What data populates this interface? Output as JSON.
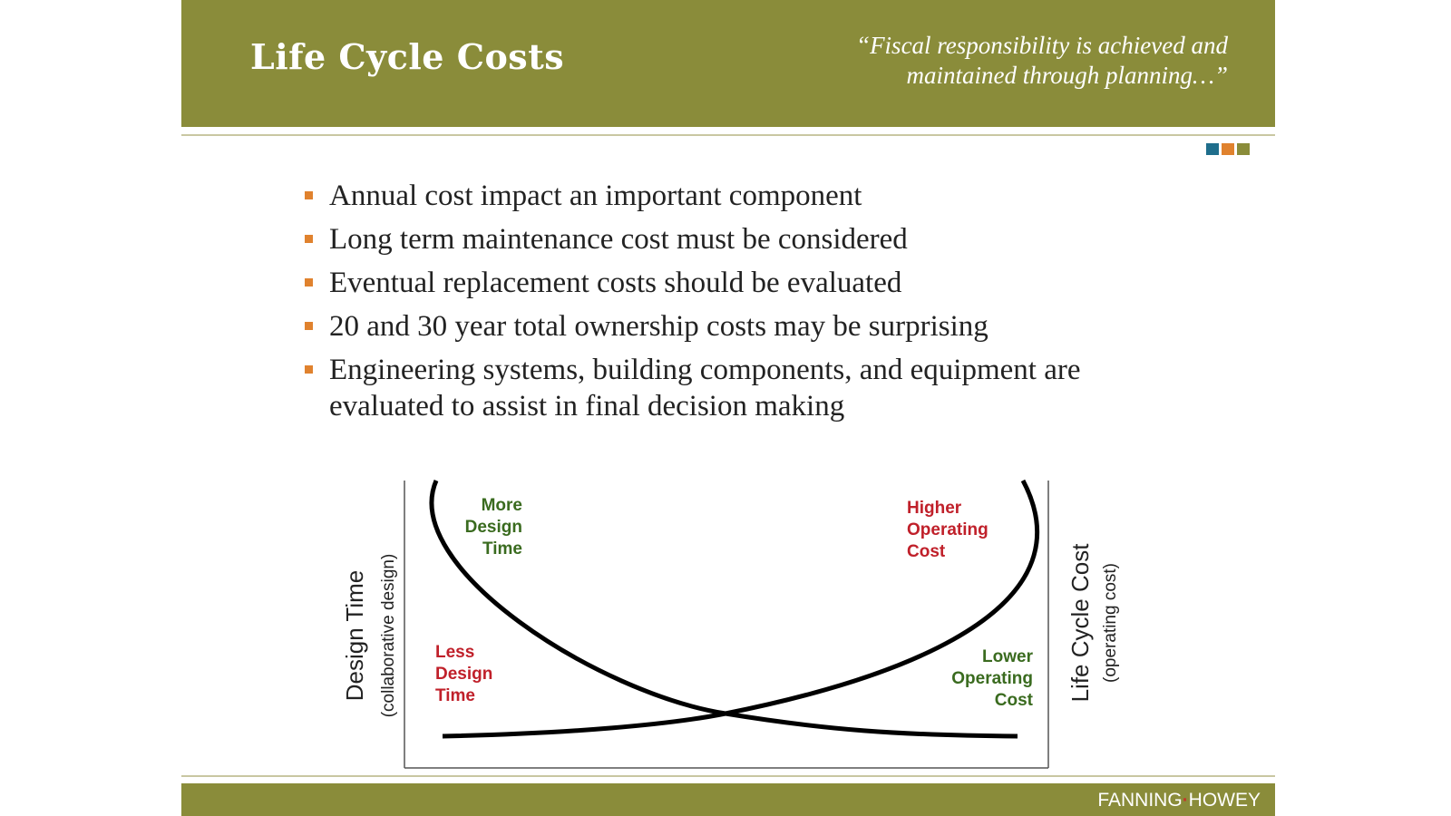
{
  "header": {
    "title": "Life Cycle Costs",
    "quote_line1": "“Fiscal responsibility is achieved and",
    "quote_line2": "maintained through planning…”"
  },
  "colors": {
    "header_bg": "#8a8c3a",
    "bullet_marker": "#e0822e",
    "square_blue": "#1f6e8c",
    "square_orange": "#e0822e",
    "square_olive": "#8a8c3a",
    "label_green": "#3a6b1f",
    "label_red": "#c0202a"
  },
  "bullets": [
    "Annual cost impact an important component",
    "Long term maintenance cost must be considered",
    "Eventual replacement costs should be evaluated",
    "20 and 30 year total ownership costs may be surprising",
    "Engineering systems, building components, and equipment are evaluated to assist in final decision making"
  ],
  "chart_data": {
    "type": "line",
    "left_axis_label": "Design Time",
    "left_axis_sublabel": "(collaborative design)",
    "right_axis_label": "Life Cycle Cost",
    "right_axis_sublabel": "(operating cost)",
    "annotations": {
      "more_design_time": [
        "More",
        "Design",
        "Time"
      ],
      "less_design_time": [
        "Less",
        "Design",
        "Time"
      ],
      "higher_operating_cost": [
        "Higher",
        "Operating",
        "Cost"
      ],
      "lower_operating_cost": [
        "Lower",
        "Operating",
        "Cost"
      ]
    },
    "series": [
      {
        "trend": "decreasing"
      },
      {
        "trend": "increasing"
      }
    ]
  },
  "footer": {
    "logo_left": "FANNING",
    "logo_right": "HOWEY"
  }
}
